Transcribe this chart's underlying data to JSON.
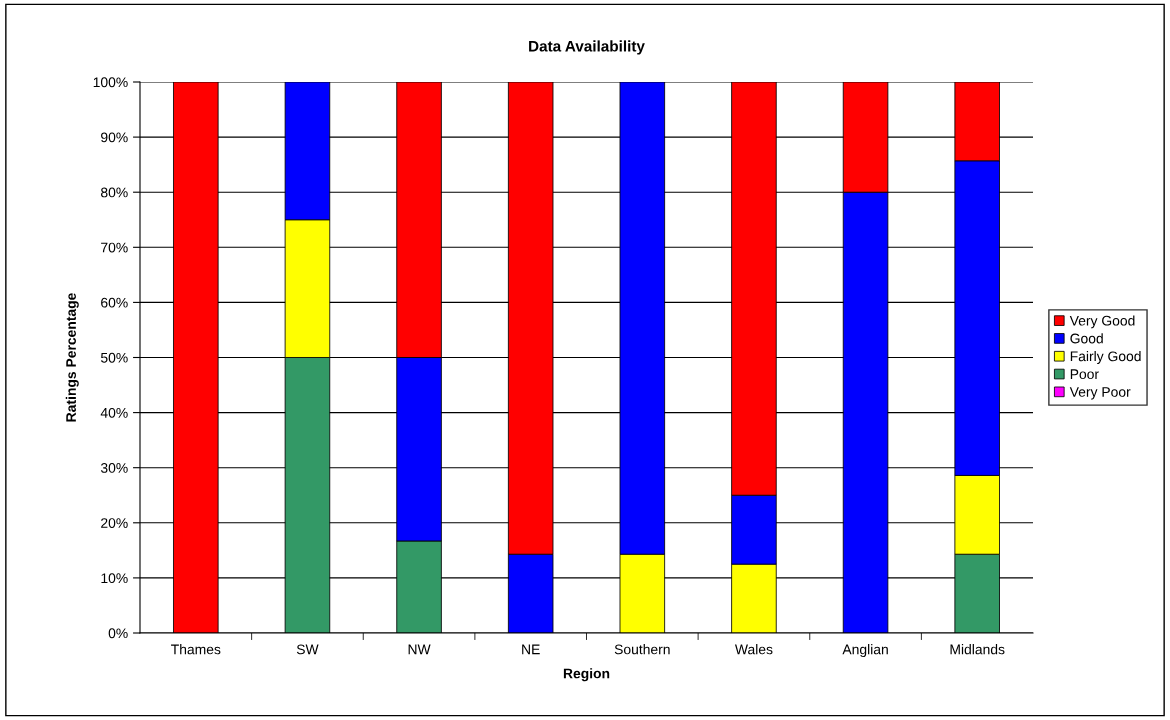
{
  "chart_data": {
    "type": "bar",
    "title": "Data Availability",
    "xlabel": "Region",
    "ylabel": "Ratings Percentage",
    "stacked": true,
    "grid": "y",
    "legend": "right",
    "categories": [
      "Thames",
      "SW",
      "NW",
      "NE",
      "Southern",
      "Wales",
      "Anglian",
      "Midlands"
    ],
    "ylim": [
      0,
      100
    ],
    "yticks": [
      {
        "value": 0,
        "label": "0%"
      },
      {
        "value": 10,
        "label": "10%"
      },
      {
        "value": 20,
        "label": "20%"
      },
      {
        "value": 30,
        "label": "30%"
      },
      {
        "value": 40,
        "label": "40%"
      },
      {
        "value": 50,
        "label": "50%"
      },
      {
        "value": 60,
        "label": "60%"
      },
      {
        "value": 70,
        "label": "70%"
      },
      {
        "value": 80,
        "label": "80%"
      },
      {
        "value": 90,
        "label": "90%"
      },
      {
        "value": 100,
        "label": "100%"
      }
    ],
    "series": [
      {
        "name": "Very Poor",
        "color": "#ff00ff",
        "values": [
          0,
          0,
          0,
          0,
          0,
          0,
          0,
          0
        ]
      },
      {
        "name": "Poor",
        "color": "#339966",
        "values": [
          0,
          50,
          16.7,
          0,
          0,
          0,
          0,
          14.3
        ]
      },
      {
        "name": "Fairly Good",
        "color": "#ffff00",
        "values": [
          0,
          25,
          0,
          0,
          14.3,
          12.5,
          0,
          14.3
        ]
      },
      {
        "name": "Good",
        "color": "#0000ff",
        "values": [
          0,
          25,
          33.3,
          14.3,
          85.7,
          12.5,
          80,
          57.1
        ]
      },
      {
        "name": "Very Good",
        "color": "#ff0000",
        "values": [
          100,
          0,
          50,
          85.7,
          0,
          75,
          20,
          14.3
        ]
      }
    ]
  }
}
